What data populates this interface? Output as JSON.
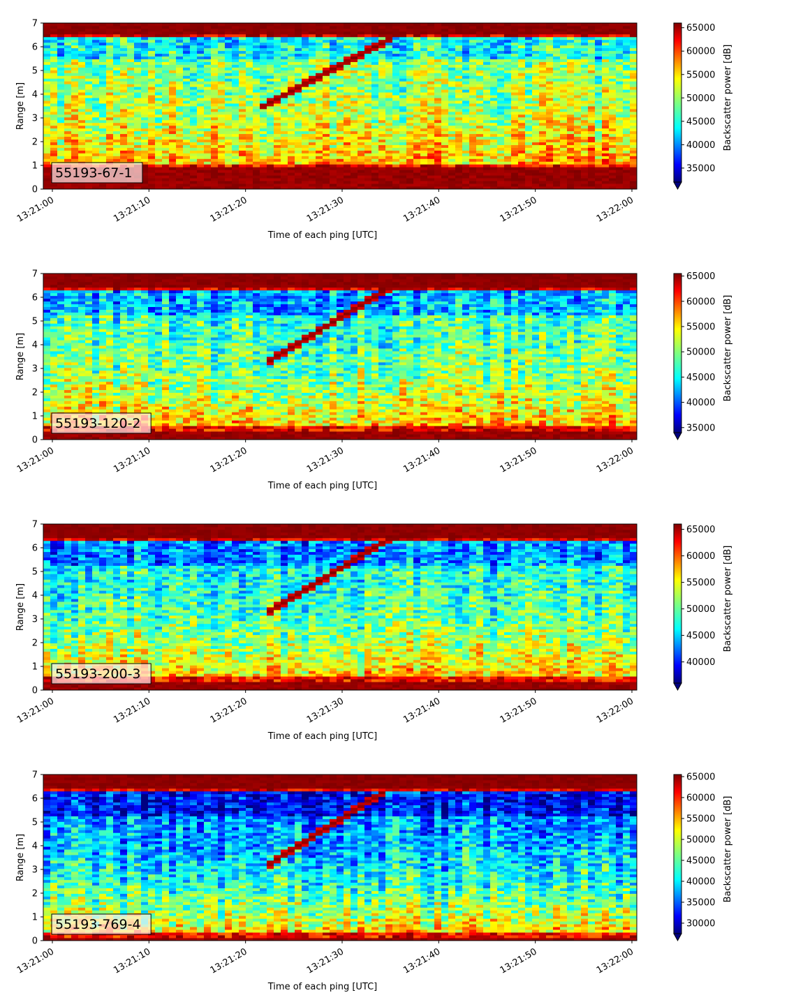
{
  "chart_data": [
    {
      "type": "heatmap",
      "label": "55193-67-1",
      "xlabel": "Time of each ping [UTC]",
      "ylabel": "Range [m]",
      "colorbar_label": "Backscatter power [dB]",
      "colormap": "jet",
      "x_ticks": [
        "13:21:00",
        "13:21:10",
        "13:21:20",
        "13:21:30",
        "13:21:40",
        "13:21:50",
        "13:22:00"
      ],
      "y_ticks": [
        0,
        1,
        2,
        3,
        4,
        5,
        6,
        7
      ],
      "ylim": [
        0,
        7
      ],
      "clim": [
        32000,
        66000
      ],
      "colorbar_ticks": [
        35000,
        40000,
        45000,
        50000,
        55000,
        60000,
        65000
      ],
      "bottom_band_top_m": 1.1,
      "top_band_bottom_m": 6.45,
      "target_track": {
        "start_s": 21.5,
        "start_range_m": 3.4,
        "end_s": 35.5,
        "end_range_m": 6.4
      },
      "background_level": 0.5,
      "seed": 11
    },
    {
      "type": "heatmap",
      "label": "55193-120-2",
      "xlabel": "Time of each ping [UTC]",
      "ylabel": "Range [m]",
      "colorbar_label": "Backscatter power [dB]",
      "colormap": "jet",
      "x_ticks": [
        "13:21:00",
        "13:21:10",
        "13:21:20",
        "13:21:30",
        "13:21:40",
        "13:21:50",
        "13:22:00"
      ],
      "y_ticks": [
        0,
        1,
        2,
        3,
        4,
        5,
        6,
        7
      ],
      "ylim": [
        0,
        7
      ],
      "clim": [
        34000,
        65500
      ],
      "colorbar_ticks": [
        35000,
        40000,
        45000,
        50000,
        55000,
        60000,
        65000
      ],
      "bottom_band_top_m": 0.6,
      "top_band_bottom_m": 6.3,
      "target_track": {
        "start_s": 22.5,
        "start_range_m": 3.3,
        "end_s": 35.5,
        "end_range_m": 6.5
      },
      "background_level": 0.42,
      "seed": 23
    },
    {
      "type": "heatmap",
      "label": "55193-200-3",
      "xlabel": "Time of each ping [UTC]",
      "ylabel": "Range [m]",
      "colorbar_label": "Backscatter power [dB]",
      "colormap": "jet",
      "x_ticks": [
        "13:21:00",
        "13:21:10",
        "13:21:20",
        "13:21:30",
        "13:21:40",
        "13:21:50",
        "13:22:00"
      ],
      "y_ticks": [
        0,
        1,
        2,
        3,
        4,
        5,
        6,
        7
      ],
      "ylim": [
        0,
        7
      ],
      "clim": [
        36000,
        66000
      ],
      "colorbar_ticks": [
        40000,
        45000,
        50000,
        55000,
        60000,
        65000
      ],
      "bottom_band_top_m": 0.55,
      "top_band_bottom_m": 6.3,
      "target_track": {
        "start_s": 22.5,
        "start_range_m": 3.3,
        "end_s": 36.0,
        "end_range_m": 6.6
      },
      "background_level": 0.38,
      "seed": 37
    },
    {
      "type": "heatmap",
      "label": "55193-769-4",
      "xlabel": "Time of each ping [UTC]",
      "ylabel": "Range [m]",
      "colorbar_label": "Backscatter power [dB]",
      "colormap": "jet",
      "x_ticks": [
        "13:21:00",
        "13:21:10",
        "13:21:20",
        "13:21:30",
        "13:21:40",
        "13:21:50",
        "13:22:00"
      ],
      "y_ticks": [
        0,
        1,
        2,
        3,
        4,
        5,
        6,
        7
      ],
      "ylim": [
        0,
        7
      ],
      "clim": [
        27500,
        65500
      ],
      "colorbar_ticks": [
        30000,
        35000,
        40000,
        45000,
        50000,
        55000,
        60000,
        65000
      ],
      "bottom_band_top_m": 0.35,
      "top_band_bottom_m": 6.35,
      "target_track": {
        "start_s": 22.5,
        "start_range_m": 3.2,
        "end_s": 35.0,
        "end_range_m": 6.4
      },
      "background_level": 0.25,
      "seed": 53
    }
  ]
}
